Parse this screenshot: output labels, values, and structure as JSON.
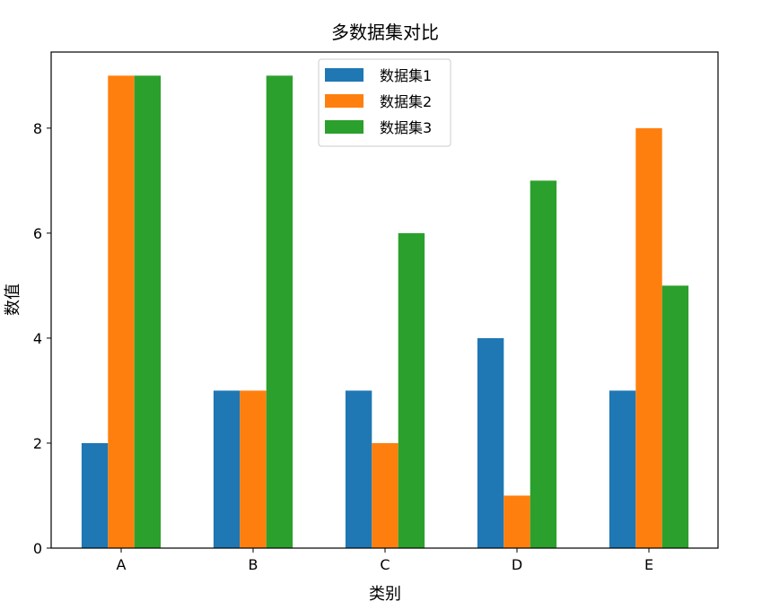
{
  "chart_data": {
    "type": "bar",
    "title": "多数据集对比",
    "xlabel": "类别",
    "ylabel": "数值",
    "categories": [
      "A",
      "B",
      "C",
      "D",
      "E"
    ],
    "series": [
      {
        "name": "数据集1",
        "values": [
          2,
          3,
          3,
          4,
          3
        ],
        "color": "#1f77b4"
      },
      {
        "name": "数据集2",
        "values": [
          9,
          3,
          2,
          1,
          8
        ],
        "color": "#ff7f0e"
      },
      {
        "name": "数据集3",
        "values": [
          9,
          9,
          6,
          7,
          5
        ],
        "color": "#2ca02c"
      }
    ],
    "ylim": [
      0,
      9.45
    ],
    "yticks": [
      0,
      2,
      4,
      6,
      8
    ],
    "grid": false,
    "legend_position": "top-center"
  }
}
